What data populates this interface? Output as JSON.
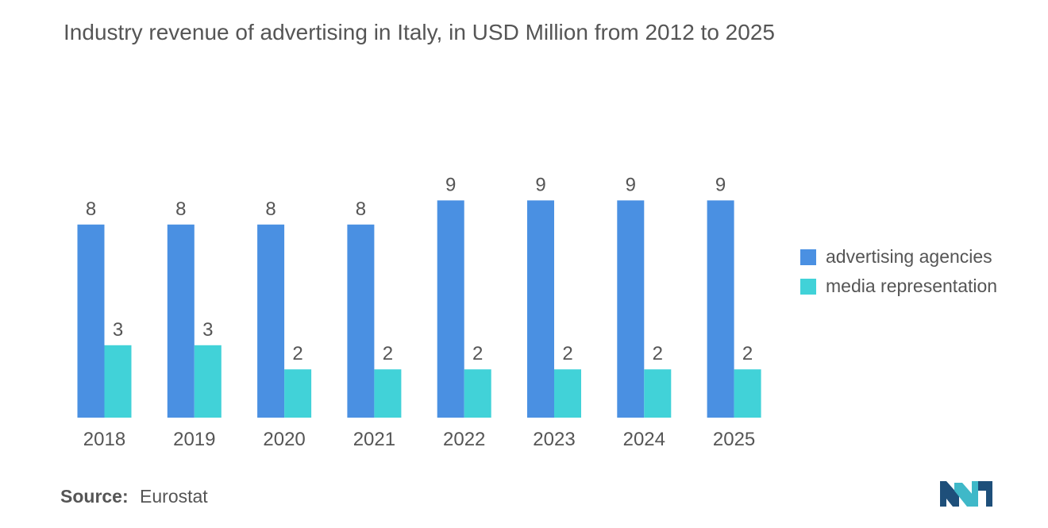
{
  "chart_data": {
    "type": "bar",
    "title": "Industry revenue of advertising in Italy, in USD Million from 2012 to 2025",
    "categories": [
      "2018",
      "2019",
      "2020",
      "2021",
      "2022",
      "2023",
      "2024",
      "2025"
    ],
    "series": [
      {
        "name": "advertising agencies",
        "color": "#4a90e2",
        "values": [
          8,
          8,
          8,
          8,
          9,
          9,
          9,
          9
        ]
      },
      {
        "name": "media representation",
        "color": "#41d2d8",
        "values": [
          3,
          3,
          2,
          2,
          2,
          2,
          2,
          2
        ]
      }
    ],
    "xlabel": "",
    "ylabel": "",
    "ylim": [
      0,
      9
    ],
    "grid": false,
    "legend": "right"
  },
  "source": {
    "label": "Source:",
    "value": "Eurostat"
  },
  "logo": {
    "icon": "mordor-intelligence-logo-icon",
    "colors": [
      "#1e4f7a",
      "#3fb8c8"
    ]
  }
}
